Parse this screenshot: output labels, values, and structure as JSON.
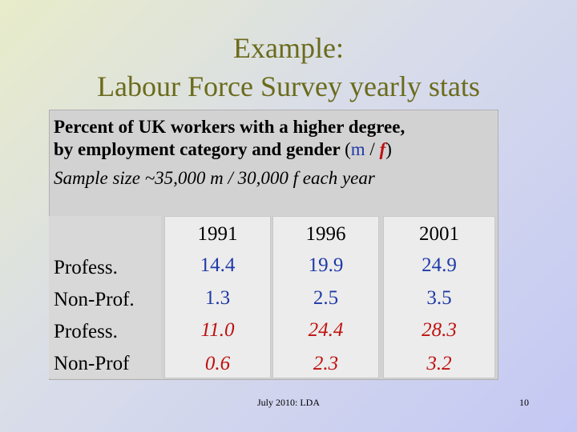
{
  "slide": {
    "title_line1": "Example:",
    "title_line2": "Labour Force Survey yearly stats",
    "desc_line1": "Percent of UK workers with a higher degree,",
    "desc_line2": "by employment category and gender",
    "paren_open": "(",
    "m": "m",
    "slash": "/",
    "f": "f",
    "paren_close": ")",
    "sample": "Sample size ~35,000 m / 30,000 f each year",
    "footer": "July 2010: LDA",
    "page_number": "10"
  },
  "table": {
    "years": [
      "1991",
      "1996",
      "2001"
    ],
    "rows": [
      {
        "label": "Profess.",
        "gender": "m",
        "values": [
          "14.4",
          "19.9",
          "24.9"
        ]
      },
      {
        "label": "Non-Prof.",
        "gender": "m",
        "values": [
          "1.3",
          "2.5",
          "3.5"
        ]
      },
      {
        "label": "Profess.",
        "gender": "f",
        "values": [
          "11.0",
          "24.4",
          "28.3"
        ]
      },
      {
        "label": "Non-Prof",
        "gender": "f",
        "values": [
          "0.6",
          "2.3",
          "3.2"
        ]
      }
    ]
  },
  "colors": {
    "male": "#1f3aa8",
    "female": "#c01010",
    "title": "#6b6b1c"
  }
}
